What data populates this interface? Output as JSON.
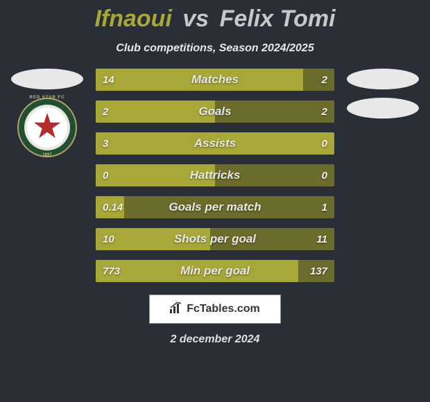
{
  "title": {
    "player1": "Ifnaoui",
    "vs": "vs",
    "player2": "Felix Tomi"
  },
  "subtitle": "Club competitions, Season 2024/2025",
  "colors": {
    "player1_bar": "#a8a838",
    "player2_bar": "#6b6b2c",
    "background": "#2a2e36",
    "text_shadow": "rgba(0,0,0,0.5)"
  },
  "rows": [
    {
      "label": "Matches",
      "left": "14",
      "right": "2",
      "left_pct": 87,
      "right_pct": 13
    },
    {
      "label": "Goals",
      "left": "2",
      "right": "2",
      "left_pct": 50,
      "right_pct": 50
    },
    {
      "label": "Assists",
      "left": "3",
      "right": "0",
      "left_pct": 100,
      "right_pct": 0
    },
    {
      "label": "Hattricks",
      "left": "0",
      "right": "0",
      "left_pct": 50,
      "right_pct": 50
    },
    {
      "label": "Goals per match",
      "left": "0.14",
      "right": "1",
      "left_pct": 12,
      "right_pct": 88
    },
    {
      "label": "Shots per goal",
      "left": "10",
      "right": "11",
      "left_pct": 48,
      "right_pct": 52
    },
    {
      "label": "Min per goal",
      "left": "773",
      "right": "137",
      "left_pct": 85,
      "right_pct": 15
    }
  ],
  "footer": {
    "site": "FcTables.com",
    "date": "2 december 2024"
  },
  "logo": {
    "top_text": "RED STAR FC",
    "bottom_text": "1897"
  }
}
